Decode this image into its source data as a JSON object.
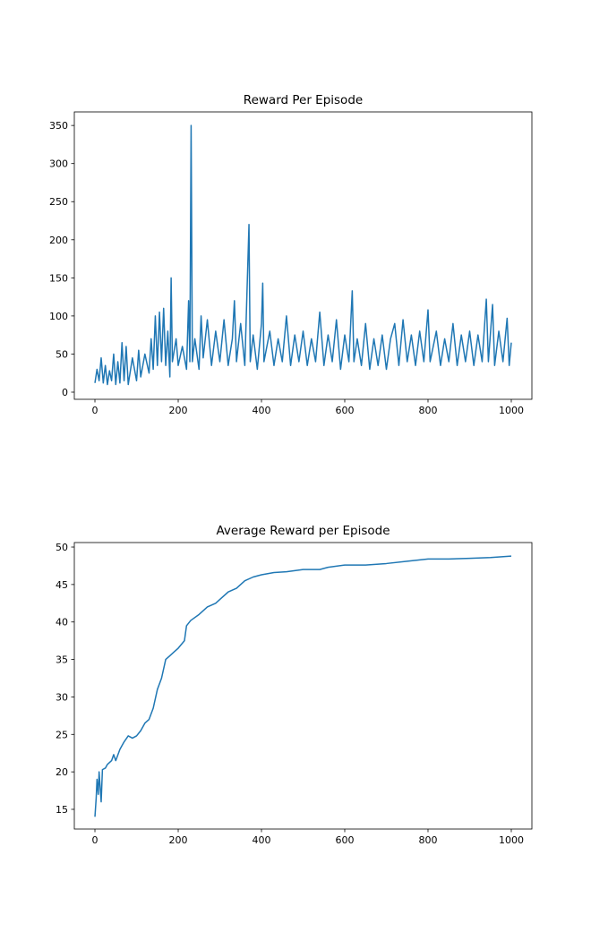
{
  "chart_data": [
    {
      "type": "line",
      "title": "Reward Per Episode",
      "color": "#1f77b4",
      "x": [
        0,
        5,
        10,
        15,
        20,
        25,
        30,
        35,
        40,
        45,
        50,
        55,
        60,
        65,
        70,
        75,
        80,
        90,
        100,
        105,
        110,
        120,
        130,
        135,
        140,
        145,
        150,
        155,
        160,
        165,
        170,
        175,
        180,
        183,
        186,
        195,
        200,
        210,
        220,
        225,
        228,
        231,
        234,
        240,
        250,
        255,
        260,
        270,
        280,
        290,
        300,
        310,
        320,
        330,
        335,
        340,
        350,
        360,
        370,
        373,
        380,
        390,
        400,
        403,
        406,
        420,
        430,
        440,
        450,
        460,
        470,
        480,
        490,
        500,
        510,
        520,
        530,
        540,
        550,
        560,
        570,
        580,
        590,
        600,
        610,
        618,
        622,
        630,
        640,
        650,
        660,
        670,
        680,
        690,
        700,
        710,
        720,
        730,
        740,
        750,
        760,
        770,
        780,
        790,
        800,
        805,
        820,
        830,
        840,
        850,
        860,
        870,
        880,
        890,
        900,
        910,
        920,
        930,
        940,
        945,
        955,
        960,
        970,
        980,
        990,
        995,
        1000
      ],
      "values": [
        12,
        30,
        15,
        45,
        12,
        35,
        10,
        28,
        15,
        50,
        10,
        40,
        12,
        65,
        15,
        60,
        10,
        45,
        15,
        55,
        20,
        50,
        25,
        70,
        30,
        100,
        35,
        105,
        40,
        110,
        35,
        80,
        20,
        150,
        40,
        70,
        35,
        60,
        30,
        120,
        40,
        350,
        40,
        70,
        30,
        100,
        45,
        95,
        35,
        80,
        40,
        95,
        35,
        70,
        120,
        40,
        90,
        35,
        220,
        40,
        75,
        30,
        90,
        143,
        40,
        80,
        35,
        70,
        40,
        100,
        35,
        75,
        40,
        80,
        35,
        70,
        40,
        105,
        35,
        75,
        40,
        95,
        30,
        75,
        40,
        133,
        40,
        70,
        35,
        90,
        30,
        70,
        35,
        75,
        30,
        70,
        90,
        35,
        95,
        40,
        75,
        35,
        80,
        40,
        108,
        40,
        80,
        35,
        70,
        40,
        90,
        35,
        75,
        40,
        80,
        35,
        75,
        40,
        122,
        40,
        115,
        35,
        80,
        40,
        97,
        35,
        65
      ],
      "xlim": [
        -49.5,
        1049.5
      ],
      "ylim": [
        -9.4,
        367.8
      ],
      "xticks": [
        0,
        200,
        400,
        600,
        800,
        1000
      ],
      "yticks": [
        0,
        50,
        100,
        150,
        200,
        250,
        300,
        350
      ]
    },
    {
      "type": "line",
      "title": "Average Reward per Episode",
      "color": "#1f77b4",
      "x": [
        0,
        3,
        5,
        8,
        10,
        15,
        18,
        25,
        30,
        40,
        45,
        50,
        60,
        70,
        80,
        90,
        100,
        110,
        120,
        130,
        140,
        150,
        160,
        170,
        180,
        190,
        200,
        215,
        220,
        230,
        250,
        270,
        290,
        300,
        320,
        340,
        360,
        380,
        400,
        430,
        460,
        500,
        540,
        560,
        600,
        650,
        700,
        750,
        800,
        850,
        900,
        950,
        1000
      ],
      "values": [
        14,
        16.5,
        19,
        17,
        20,
        16,
        20.3,
        20.5,
        21,
        21.5,
        22.3,
        21.5,
        23,
        24,
        24.8,
        24.5,
        24.8,
        25.5,
        26.5,
        27,
        28.5,
        31,
        32.5,
        35,
        35.5,
        36,
        36.5,
        37.5,
        39.5,
        40.2,
        41,
        42,
        42.5,
        43,
        44,
        44.5,
        45.5,
        46,
        46.3,
        46.6,
        46.7,
        47,
        47,
        47.3,
        47.6,
        47.6,
        47.8,
        48.1,
        48.4,
        48.4,
        48.5,
        48.6,
        48.8
      ],
      "xlim": [
        -49.5,
        1049.5
      ],
      "ylim": [
        12.37,
        50.6
      ],
      "xticks": [
        0,
        200,
        400,
        600,
        800,
        1000
      ],
      "yticks": [
        15,
        20,
        25,
        30,
        35,
        40,
        45,
        50
      ]
    }
  ]
}
